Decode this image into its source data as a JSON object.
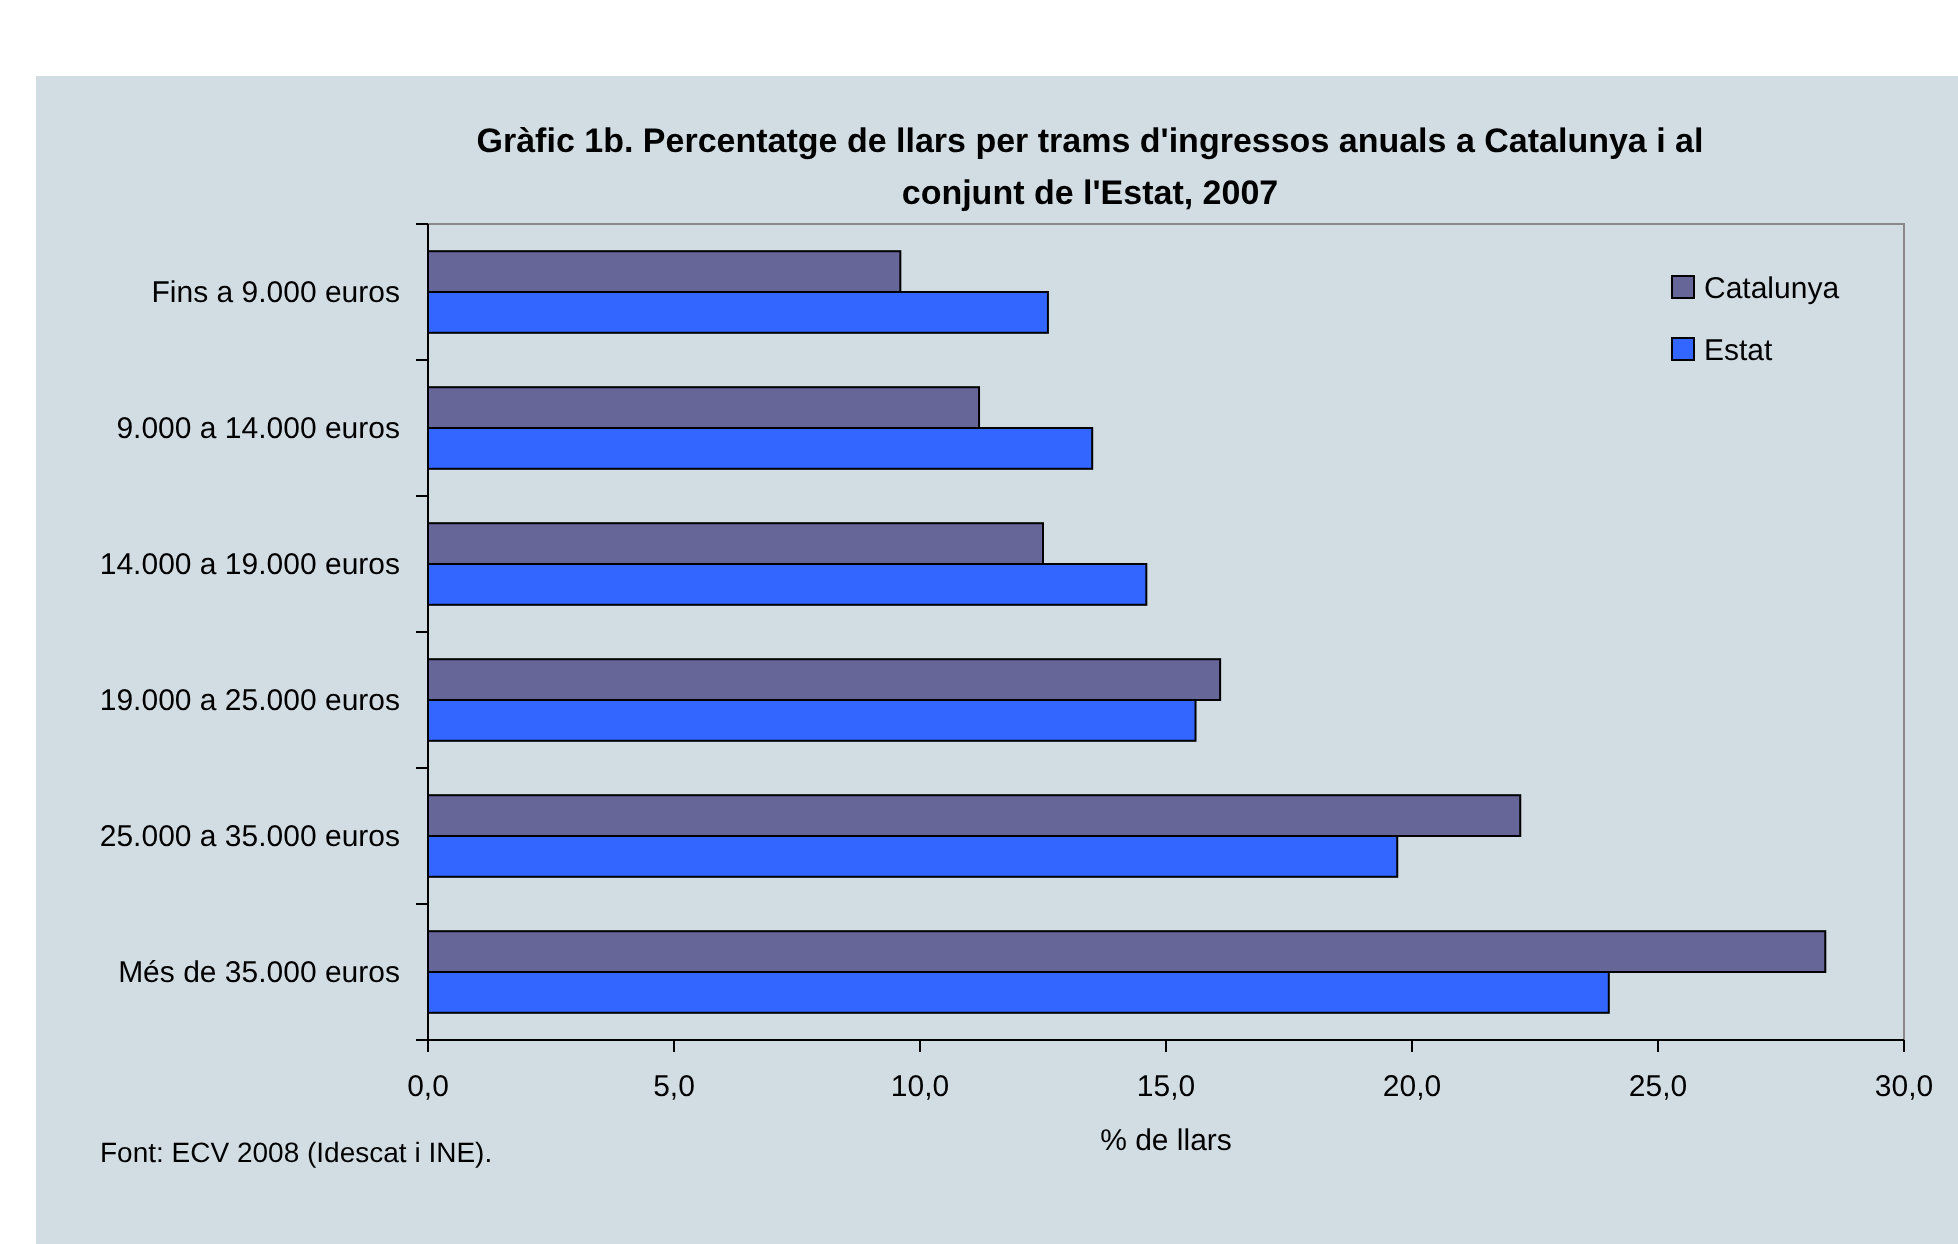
{
  "chart_data": {
    "type": "bar",
    "orientation": "horizontal",
    "title": "Gràfic 1b. Percentatge de llars per trams d'ingressos anuals a Catalunya i al conjunt de l'Estat, 2007",
    "xlabel": "% de llars",
    "categories": [
      "Fins a 9.000 euros",
      "9.000 a 14.000 euros",
      "14.000 a 19.000 euros",
      "19.000 a 25.000 euros",
      "25.000 a 35.000 euros",
      "Més de 35.000 euros"
    ],
    "series": [
      {
        "name": "Catalunya",
        "color": "#666699",
        "values": [
          9.6,
          11.2,
          12.5,
          16.1,
          22.2,
          28.4
        ]
      },
      {
        "name": "Estat",
        "color": "#3366ff",
        "values": [
          12.6,
          13.5,
          14.6,
          15.6,
          19.7,
          24.0
        ]
      }
    ],
    "xlim": [
      0,
      30
    ],
    "xticks": [
      {
        "value": 0,
        "label": "0,0"
      },
      {
        "value": 5,
        "label": "5,0"
      },
      {
        "value": 10,
        "label": "10,0"
      },
      {
        "value": 15,
        "label": "15,0"
      },
      {
        "value": 20,
        "label": "20,0"
      },
      {
        "value": 25,
        "label": "25,0"
      },
      {
        "value": 30,
        "label": "30,0"
      }
    ],
    "legend": "top right",
    "grid": false,
    "annotations": [
      "Font: ECV 2008 (Idescat i INE)."
    ]
  }
}
